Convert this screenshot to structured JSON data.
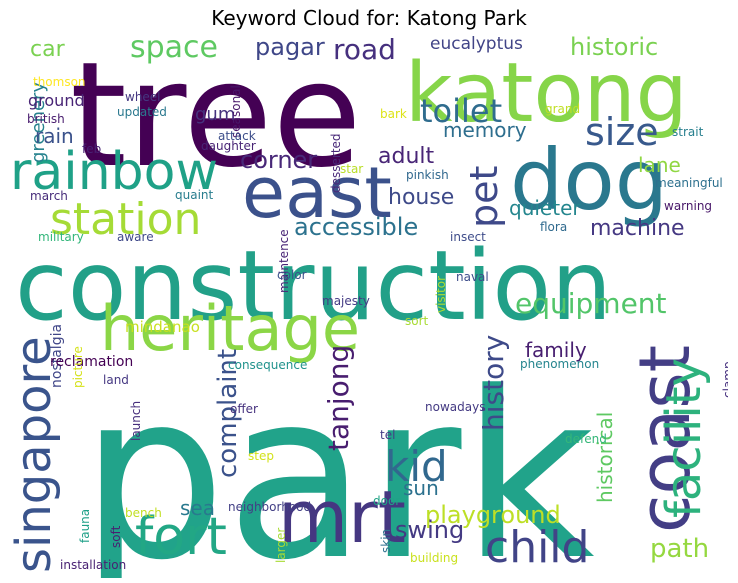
{
  "title": "Keyword Cloud for: Katong Park",
  "words": [
    {
      "id": "park",
      "text": "park",
      "color": "#21a38a"
    },
    {
      "id": "tree",
      "text": "tree",
      "color": "#440154"
    },
    {
      "id": "construction",
      "text": "construction",
      "color": "#22a088"
    },
    {
      "id": "katong",
      "text": "katong",
      "color": "#86d549"
    },
    {
      "id": "dog",
      "text": "dog",
      "color": "#2a788e"
    },
    {
      "id": "heritage",
      "text": "heritage",
      "color": "#8bd646"
    },
    {
      "id": "east",
      "text": "east",
      "color": "#3b518b"
    },
    {
      "id": "rainbow",
      "text": "rainbow",
      "color": "#1fa187"
    },
    {
      "id": "coast",
      "text": "coast",
      "color": "#433e85"
    },
    {
      "id": "mrt",
      "text": "mrt",
      "color": "#453781"
    },
    {
      "id": "singapore",
      "text": "singapore",
      "color": "#3a548c"
    },
    {
      "id": "facility",
      "text": "facility",
      "color": "#2db27d"
    },
    {
      "id": "fort",
      "text": "fort",
      "color": "#22a785"
    },
    {
      "id": "child",
      "text": "child",
      "color": "#414487"
    },
    {
      "id": "station",
      "text": "station",
      "color": "#a5db36"
    },
    {
      "id": "kid",
      "text": "kid",
      "color": "#31688e"
    },
    {
      "id": "size",
      "text": "size",
      "color": "#38598c"
    },
    {
      "id": "pet",
      "text": "pet",
      "color": "#3e4989"
    },
    {
      "id": "space",
      "text": "space",
      "color": "#5ec962"
    },
    {
      "id": "toilet",
      "text": "toilet",
      "color": "#2f6c8e"
    },
    {
      "id": "road",
      "text": "road",
      "color": "#46307e"
    },
    {
      "id": "equipment",
      "text": "equipment",
      "color": "#52c569"
    },
    {
      "id": "history",
      "text": "history",
      "color": "#3e4a89"
    },
    {
      "id": "tanjong",
      "text": "tanjong",
      "color": "#481d6f"
    },
    {
      "id": "complaint",
      "text": "complaint",
      "color": "#3b528b"
    },
    {
      "id": "path",
      "text": "path",
      "color": "#95d840"
    },
    {
      "id": "playground",
      "text": "playground",
      "color": "#bddf26"
    },
    {
      "id": "historic",
      "text": "historic",
      "color": "#7ad151"
    },
    {
      "id": "accessible",
      "text": "accessible",
      "color": "#2c728e"
    },
    {
      "id": "pagar",
      "text": "pagar",
      "color": "#3f4788"
    },
    {
      "id": "swing",
      "text": "swing",
      "color": "#443a83"
    },
    {
      "id": "corner",
      "text": "corner",
      "color": "#482878"
    },
    {
      "id": "sun",
      "text": "sun",
      "color": "#2c718e"
    },
    {
      "id": "family",
      "text": "family",
      "color": "#481f70"
    },
    {
      "id": "house",
      "text": "house",
      "color": "#3e4a89"
    },
    {
      "id": "machine",
      "text": "machine",
      "color": "#453882"
    },
    {
      "id": "adult",
      "text": "adult",
      "color": "#482576"
    },
    {
      "id": "memory",
      "text": "memory",
      "color": "#2e6e8e"
    },
    {
      "id": "quieter",
      "text": "quieter",
      "color": "#24868e"
    },
    {
      "id": "historical",
      "text": "historical",
      "color": "#5ec962"
    },
    {
      "id": "lane",
      "text": "lane",
      "color": "#90d743"
    },
    {
      "id": "car",
      "text": "car",
      "color": "#7ad151"
    },
    {
      "id": "greenery",
      "text": "greenery",
      "color": "#26828e"
    },
    {
      "id": "rain",
      "text": "rain",
      "color": "#3b528b"
    },
    {
      "id": "sea",
      "text": "sea",
      "color": "#29798e"
    },
    {
      "id": "eucalyptus",
      "text": "eucalyptus",
      "color": "#414487"
    },
    {
      "id": "ground",
      "text": "ground",
      "color": "#482475"
    },
    {
      "id": "gum",
      "text": "gum",
      "color": "#46327e"
    },
    {
      "id": "mindanao",
      "text": "mindanao",
      "color": "#c8e020"
    },
    {
      "id": "nostalgia",
      "text": "nostalgia",
      "color": "#404688"
    },
    {
      "id": "reclamation",
      "text": "reclamation",
      "color": "#440154"
    },
    {
      "id": "thomson",
      "text": "thomson",
      "color": "#fde725"
    },
    {
      "id": "british",
      "text": "british",
      "color": "#481c6e"
    },
    {
      "id": "wheel",
      "text": "wheel",
      "color": "#453781"
    },
    {
      "id": "updated",
      "text": "updated",
      "color": "#2a788e"
    },
    {
      "id": "seasonal",
      "text": "seasonal",
      "color": "#48186a"
    },
    {
      "id": "attack",
      "text": "attack",
      "color": "#3d4e8a"
    },
    {
      "id": "daughter",
      "text": "daughter",
      "color": "#482475"
    },
    {
      "id": "feb",
      "text": "feb",
      "color": "#482173"
    },
    {
      "id": "march",
      "text": "march",
      "color": "#472c7a"
    },
    {
      "id": "quaint",
      "text": "quaint",
      "color": "#287d8e"
    },
    {
      "id": "military",
      "text": "military",
      "color": "#32b67a"
    },
    {
      "id": "aware",
      "text": "aware",
      "color": "#3f4889"
    },
    {
      "id": "desserted",
      "text": "desserted",
      "color": "#482878"
    },
    {
      "id": "star",
      "text": "star",
      "color": "#bade28"
    },
    {
      "id": "pinkish",
      "text": "pinkish",
      "color": "#31688e"
    },
    {
      "id": "bark",
      "text": "bark",
      "color": "#dde318"
    },
    {
      "id": "grand",
      "text": "grand",
      "color": "#c0df25"
    },
    {
      "id": "strait",
      "text": "strait",
      "color": "#277f8e"
    },
    {
      "id": "meaningful",
      "text": "meaningful",
      "color": "#2d708e"
    },
    {
      "id": "warning",
      "text": "warning",
      "color": "#481769"
    },
    {
      "id": "flora",
      "text": "flora",
      "color": "#306a8e"
    },
    {
      "id": "insect",
      "text": "insect",
      "color": "#3e4c8a"
    },
    {
      "id": "naval",
      "text": "naval",
      "color": "#3d4d8a"
    },
    {
      "id": "visitor",
      "text": "visitor",
      "color": "#addc30"
    },
    {
      "id": "maintence",
      "text": "maintence",
      "color": "#482576"
    },
    {
      "id": "color",
      "text": "color",
      "color": "#3b528b"
    },
    {
      "id": "majesty",
      "text": "majesty",
      "color": "#443b84"
    },
    {
      "id": "picture",
      "text": "picture",
      "color": "#d5e21a"
    },
    {
      "id": "sort",
      "text": "sort",
      "color": "#a8db34"
    },
    {
      "id": "consequence",
      "text": "consequence",
      "color": "#20928c"
    },
    {
      "id": "phenomenon",
      "text": "phenomenon",
      "color": "#25858e"
    },
    {
      "id": "clamp",
      "text": "clamp",
      "color": "#46307e"
    },
    {
      "id": "land",
      "text": "land",
      "color": "#453882"
    },
    {
      "id": "offer",
      "text": "offer",
      "color": "#46327e"
    },
    {
      "id": "launch",
      "text": "launch",
      "color": "#472f7d"
    },
    {
      "id": "nowadays",
      "text": "nowadays",
      "color": "#443a83"
    },
    {
      "id": "tel",
      "text": "tel",
      "color": "#433e85"
    },
    {
      "id": "step",
      "text": "step",
      "color": "#d2e21b"
    },
    {
      "id": "defend",
      "text": "defend",
      "color": "#35b779"
    },
    {
      "id": "bench",
      "text": "bench",
      "color": "#c2df23"
    },
    {
      "id": "neighborhood",
      "text": "neighborhood",
      "color": "#423f85"
    },
    {
      "id": "door",
      "text": "door",
      "color": "#20a386"
    },
    {
      "id": "fauna",
      "text": "fauna",
      "color": "#1fa088"
    },
    {
      "id": "soft",
      "text": "soft",
      "color": "#482071"
    },
    {
      "id": "larger",
      "text": "larger",
      "color": "#a8db34"
    },
    {
      "id": "skin",
      "text": "skin",
      "color": "#2d708e"
    },
    {
      "id": "installation",
      "text": "installation",
      "color": "#482173"
    },
    {
      "id": "seafront",
      "text": "seafront",
      "color": "#3e4989"
    },
    {
      "id": "building",
      "text": "building",
      "color": "#cae11f"
    }
  ]
}
